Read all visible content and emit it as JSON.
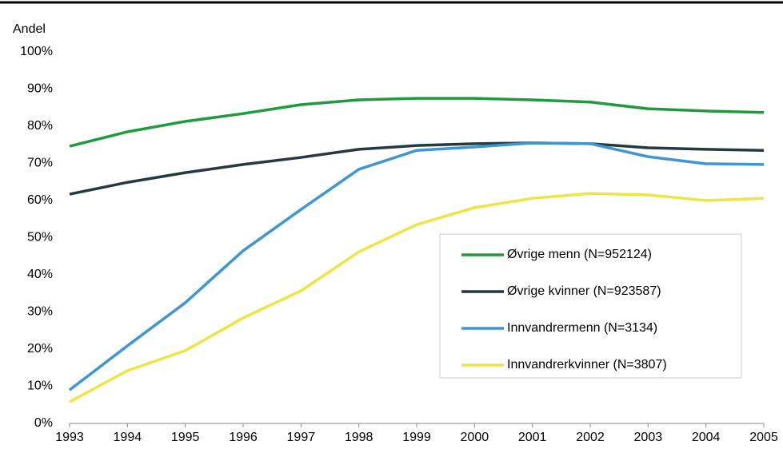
{
  "chart_data": {
    "type": "line",
    "y_label": "Andel",
    "x": [
      1993,
      1994,
      1995,
      1996,
      1997,
      1998,
      1999,
      2000,
      2001,
      2002,
      2003,
      2004,
      2005
    ],
    "xlim": [
      1993,
      2005
    ],
    "xticks": [
      1993,
      1994,
      1995,
      1996,
      1997,
      1998,
      1999,
      2000,
      2001,
      2002,
      2003,
      2004,
      2005
    ],
    "ylim": [
      0,
      100
    ],
    "yticks": [
      {
        "value": 0,
        "label": "0%"
      },
      {
        "value": 10,
        "label": "10%"
      },
      {
        "value": 20,
        "label": "20%"
      },
      {
        "value": 30,
        "label": "30%"
      },
      {
        "value": 40,
        "label": "40%"
      },
      {
        "value": 50,
        "label": "50%"
      },
      {
        "value": 60,
        "label": "60%"
      },
      {
        "value": 70,
        "label": "70%"
      },
      {
        "value": 80,
        "label": "80%"
      },
      {
        "value": 90,
        "label": "90%"
      },
      {
        "value": 100,
        "label": "100%"
      }
    ],
    "grid": false,
    "legend": "right",
    "series": [
      {
        "name": "Øvrige menn (N=952124)",
        "color": "#1e9b3c",
        "values": [
          74.6,
          78.5,
          81.3,
          83.4,
          85.8,
          87.1,
          87.5,
          87.5,
          87.1,
          86.5,
          84.7,
          84.1,
          83.7
        ]
      },
      {
        "name": "Øvrige kvinner (N=923587)",
        "color": "#243a3f",
        "values": [
          61.7,
          64.9,
          67.5,
          69.7,
          71.6,
          73.8,
          74.8,
          75.3,
          75.5,
          75.3,
          74.2,
          73.8,
          73.5
        ]
      },
      {
        "name": "Innvandrermenn (N=3134)",
        "color": "#3e97d3",
        "values": [
          9,
          20.9,
          32.5,
          46.5,
          57.6,
          68.4,
          73.5,
          74.4,
          75.5,
          75.3,
          71.8,
          69.9,
          69.7
        ]
      },
      {
        "name": "Innvandrerkvinner (N=3807)",
        "color": "#eee545",
        "values": [
          5.8,
          14.2,
          19.6,
          28.4,
          35.7,
          46.2,
          53.5,
          58.1,
          60.6,
          61.9,
          61.5,
          60,
          60.6
        ]
      }
    ]
  }
}
